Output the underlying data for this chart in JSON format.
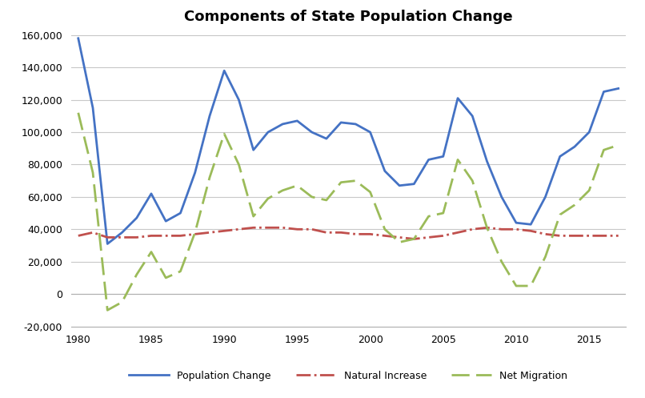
{
  "title": "Components of State Population Change",
  "years": [
    1980,
    1981,
    1982,
    1983,
    1984,
    1985,
    1986,
    1987,
    1988,
    1989,
    1990,
    1991,
    1992,
    1993,
    1994,
    1995,
    1996,
    1997,
    1998,
    1999,
    2000,
    2001,
    2002,
    2003,
    2004,
    2005,
    2006,
    2007,
    2008,
    2009,
    2010,
    2011,
    2012,
    2013,
    2014,
    2015,
    2016,
    2017
  ],
  "population_change": [
    158000,
    115000,
    31000,
    38000,
    47000,
    62000,
    45000,
    50000,
    75000,
    110000,
    138000,
    120000,
    89000,
    100000,
    105000,
    107000,
    100000,
    96000,
    106000,
    105000,
    100000,
    76000,
    67000,
    68000,
    83000,
    85000,
    121000,
    110000,
    82000,
    60000,
    44000,
    43000,
    60000,
    85000,
    91000,
    100000,
    125000,
    127000
  ],
  "natural_increase": [
    36000,
    38000,
    35000,
    35000,
    35000,
    36000,
    36000,
    36000,
    37000,
    38000,
    39000,
    40000,
    41000,
    41000,
    41000,
    40000,
    40000,
    38000,
    38000,
    37000,
    37000,
    36000,
    35000,
    34000,
    35000,
    36000,
    38000,
    40000,
    41000,
    40000,
    40000,
    39000,
    37000,
    36000,
    36000,
    36000,
    36000,
    36000
  ],
  "net_migration": [
    112000,
    75000,
    -10000,
    -5000,
    12000,
    26000,
    10000,
    14000,
    38000,
    72000,
    99000,
    80000,
    48000,
    59000,
    64000,
    67000,
    60000,
    58000,
    69000,
    70000,
    63000,
    40000,
    32000,
    34000,
    48000,
    50000,
    83000,
    70000,
    41000,
    20000,
    5000,
    5000,
    23000,
    49000,
    55000,
    64000,
    89000,
    92000
  ],
  "population_color": "#4472C4",
  "natural_color": "#C0504D",
  "migration_color": "#9BBB59",
  "xlim": [
    1979.5,
    2017.5
  ],
  "ylim": [
    -20000,
    162000
  ],
  "yticks": [
    -20000,
    0,
    20000,
    40000,
    60000,
    80000,
    100000,
    120000,
    140000,
    160000
  ],
  "xticks": [
    1980,
    1985,
    1990,
    1995,
    2000,
    2005,
    2010,
    2015
  ],
  "background_color": "#ffffff",
  "grid_color": "#c8c8c8",
  "title_fontsize": 13,
  "tick_fontsize": 9,
  "legend_fontsize": 9
}
